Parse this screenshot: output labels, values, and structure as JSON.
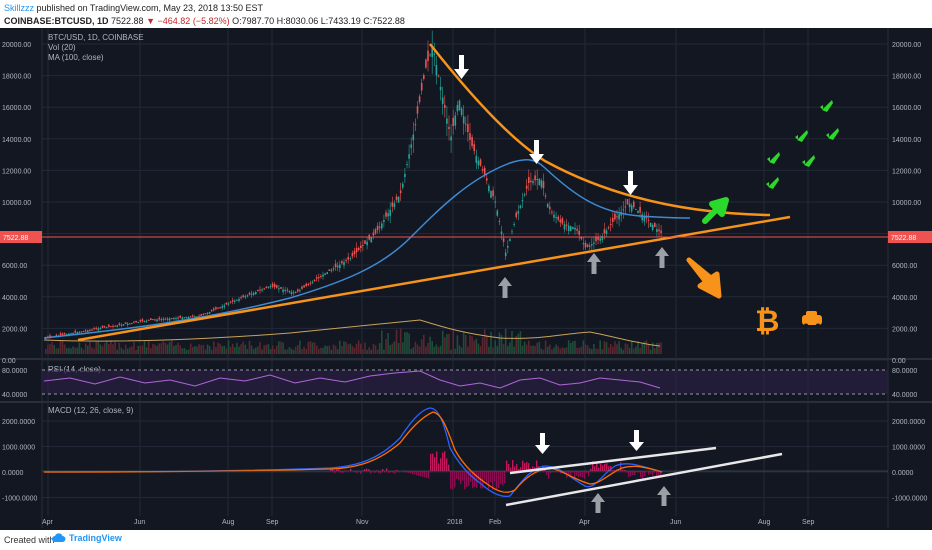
{
  "header": {
    "author": "Skillzzz",
    "published": "published on TradingView.com, May 23, 2018 13:50 EST",
    "symbol": "COINBASE:BTCUSD, 1D",
    "last": "7522.88",
    "change": "−464.82 (−5.82%)",
    "open": "O:7987.70",
    "high": "H:8030.06",
    "low": "L:7433.19",
    "close": "C:7522.88"
  },
  "chart": {
    "title": "BTC/USD, 1D, COINBASE",
    "vol_label": "Vol (20)",
    "ma_label": "MA (100, close)",
    "rsi_label": "RSI (14, close)",
    "macd_label": "MACD (12, 26, close, 9)",
    "price_ticks": [
      "20000.00",
      "18000.00",
      "16000.00",
      "14000.00",
      "12000.00",
      "10000.00",
      "8000.00",
      "6000.00",
      "4000.00",
      "2000.00",
      "0.00"
    ],
    "rsi_ticks": [
      "80.0000",
      "40.0000"
    ],
    "macd_ticks": [
      "2000.0000",
      "1000.0000",
      "0.0000",
      "-1000.0000"
    ],
    "x_ticks": [
      "Apr",
      "Jun",
      "Aug",
      "Sep",
      "Nov",
      "2018",
      "Feb",
      "Apr",
      "Jun",
      "Aug",
      "Sep"
    ],
    "current_price": "7522.88",
    "colors": {
      "bg": "#131722",
      "up": "#26a69a",
      "down": "#ef5350",
      "ma": "#3d8bd3",
      "trend": "#f7931a",
      "arrow_white": "#ffffff",
      "arrow_gray": "#9aa0a6",
      "green": "#2bd92b"
    }
  },
  "footer": {
    "created_with": "Created with",
    "brand": "TradingView"
  }
}
